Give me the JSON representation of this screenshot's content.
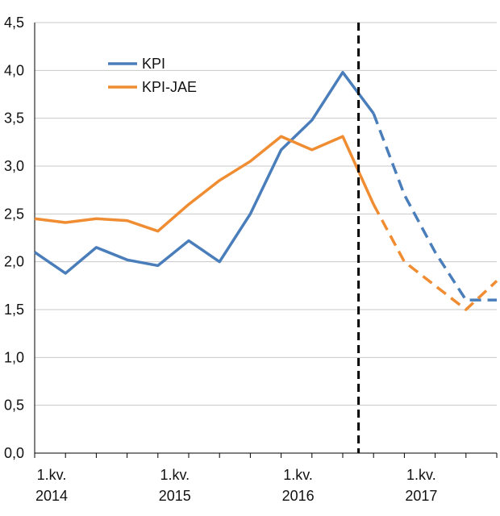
{
  "chart_data": {
    "type": "line",
    "title": "",
    "xlabel": "",
    "ylabel": "",
    "ylim": [
      0,
      4.5
    ],
    "y_ticks": [
      "0,0",
      "0,5",
      "1,0",
      "1,5",
      "2,0",
      "2,5",
      "3,0",
      "3,5",
      "4,0",
      "4,5"
    ],
    "grid": true,
    "legend_position": "top-left",
    "x": [
      "2014 Q1",
      "2014 Q2",
      "2014 Q3",
      "2014 Q4",
      "2015 Q1",
      "2015 Q2",
      "2015 Q3",
      "2015 Q4",
      "2016 Q1",
      "2016 Q2",
      "2016 Q3",
      "2016 Q4",
      "2017 Q1",
      "2017 Q2",
      "2017 Q3",
      "2017 Q4"
    ],
    "x_tick_labels": [
      {
        "index": 0,
        "line1": "1.kv.",
        "line2": "2014"
      },
      {
        "index": 4,
        "line1": "1.kv.",
        "line2": "2015"
      },
      {
        "index": 8,
        "line1": "1.kv.",
        "line2": "2016"
      },
      {
        "index": 12,
        "line1": "1.kv.",
        "line2": "2017"
      }
    ],
    "forecast_start_between_indices": [
      10.5
    ],
    "series": [
      {
        "name": "KPI",
        "color": "#4a7ebb",
        "values": [
          2.1,
          1.88,
          2.15,
          2.02,
          1.96,
          2.22,
          2.0,
          2.5,
          3.17,
          3.48,
          3.98,
          3.55,
          2.7,
          2.1,
          1.6,
          1.6
        ],
        "projected_from_index": 11
      },
      {
        "name": "KPI-JAE",
        "color": "#f08c32",
        "values": [
          2.45,
          2.41,
          2.45,
          2.43,
          2.32,
          2.6,
          2.85,
          3.05,
          3.31,
          3.17,
          3.31,
          2.6,
          2.0,
          1.75,
          1.5,
          1.8
        ],
        "projected_from_index": 11
      }
    ]
  }
}
